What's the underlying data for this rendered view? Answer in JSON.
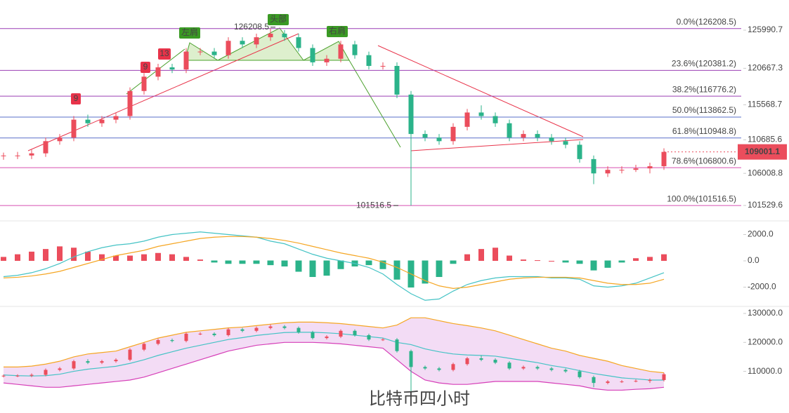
{
  "chart_data": [
    {
      "type": "candlestick",
      "ylim": [
        99866,
        130198
      ],
      "yticks": [
        125990.7,
        120667.3,
        115568.7,
        110685.6,
        106008.8,
        101529.6
      ],
      "up_color": "#eb4d5c",
      "down_color": "#2bb38a",
      "fib_levels": [
        {
          "value": 126208.5,
          "label": "0.0%(126208.5)",
          "color": "#9b3fb5"
        },
        {
          "value": 120381.2,
          "label": "23.6%(120381.2)",
          "color": "#9b3fb5"
        },
        {
          "value": 116776.2,
          "label": "38.2%(116776.2)",
          "color": "#9b3fb5"
        },
        {
          "value": 113862.5,
          "label": "50.0%(113862.5)",
          "color": "#5a6fc8"
        },
        {
          "value": 110948.8,
          "label": "61.8%(110948.8)",
          "color": "#5a6fc8"
        },
        {
          "value": 106800.6,
          "label": "78.6%(106800.6)",
          "color": "#d64fb0"
        },
        {
          "value": 101516.5,
          "label": "100.0%(101516.5)",
          "color": "#d64fb0"
        }
      ],
      "annotations": [
        "左肩",
        "头部",
        "右肩",
        "9",
        "9",
        "13"
      ],
      "ohlc": [
        [
          108400,
          108900,
          107900,
          108500
        ],
        [
          108500,
          109000,
          108000,
          108500
        ],
        [
          108500,
          109300,
          108000,
          108800
        ],
        [
          108800,
          111000,
          108300,
          110500
        ],
        [
          110500,
          111500,
          110000,
          111000
        ],
        [
          111000,
          114000,
          110500,
          113500
        ],
        [
          113500,
          114200,
          112500,
          113000
        ],
        [
          113000,
          114000,
          112500,
          113500
        ],
        [
          113500,
          114500,
          113000,
          114000
        ],
        [
          114000,
          118000,
          113500,
          117500
        ],
        [
          117500,
          120000,
          117000,
          119500
        ],
        [
          119500,
          121300,
          119000,
          120800
        ],
        [
          120800,
          121300,
          120000,
          120500
        ],
        [
          120500,
          123500,
          120000,
          123000
        ],
        [
          123000,
          123500,
          122500,
          123000
        ],
        [
          123000,
          123500,
          122000,
          122500
        ],
        [
          122500,
          125000,
          122000,
          124500
        ],
        [
          124500,
          125000,
          123500,
          124000
        ],
        [
          124000,
          125500,
          123500,
          125000
        ],
        [
          125000,
          126208.5,
          124500,
          125500
        ],
        [
          125500,
          126000,
          124500,
          125000
        ],
        [
          125000,
          125500,
          123000,
          123500
        ],
        [
          123500,
          124000,
          121000,
          121500
        ],
        [
          121500,
          122500,
          121000,
          122000
        ],
        [
          122000,
          124500,
          121500,
          124000
        ],
        [
          124000,
          124500,
          122000,
          122500
        ],
        [
          122500,
          123000,
          120500,
          121000
        ],
        [
          121000,
          121500,
          120500,
          121000
        ],
        [
          121000,
          121500,
          116500,
          117000
        ],
        [
          117000,
          117500,
          101516.5,
          111500
        ],
        [
          111500,
          112000,
          110500,
          111000
        ],
        [
          111000,
          111500,
          110000,
          110500
        ],
        [
          110500,
          113000,
          110000,
          112500
        ],
        [
          112500,
          115000,
          112000,
          114500
        ],
        [
          114500,
          115500,
          113500,
          114000
        ],
        [
          114000,
          114500,
          112500,
          113000
        ],
        [
          113000,
          113500,
          110500,
          111000
        ],
        [
          111000,
          112000,
          110500,
          111500
        ],
        [
          111500,
          112000,
          110500,
          111000
        ],
        [
          111000,
          111500,
          110000,
          110500
        ],
        [
          110500,
          111000,
          109500,
          110000
        ],
        [
          110000,
          110500,
          107500,
          108000
        ],
        [
          108000,
          108500,
          104500,
          106000
        ],
        [
          106000,
          107000,
          105500,
          106500
        ],
        [
          106500,
          107000,
          106000,
          106500
        ],
        [
          106500,
          107200,
          106200,
          106700
        ],
        [
          106700,
          107500,
          106000,
          107000
        ],
        [
          107000,
          109500,
          106500,
          109001.1
        ]
      ]
    },
    {
      "type": "macd",
      "ylim": [
        -3300,
        2800
      ],
      "yticks": [
        {
          "value": 2000,
          "label": "2000.0"
        },
        {
          "value": 0,
          "label": "0.0"
        },
        {
          "value": -2000,
          "label": "-2000.0"
        }
      ],
      "up_color": "#eb4d5c",
      "down_color": "#2bb38a",
      "histogram": [
        300,
        500,
        700,
        900,
        1100,
        1000,
        700,
        500,
        400,
        400,
        500,
        600,
        500,
        300,
        100,
        -100,
        -200,
        -200,
        -200,
        -300,
        -400,
        -800,
        -1200,
        -1100,
        -600,
        -400,
        -300,
        -600,
        -1400,
        -2000,
        -1700,
        -1200,
        -200,
        500,
        900,
        1000,
        400,
        100,
        50,
        0,
        -100,
        -200,
        -700,
        -500,
        -100,
        200,
        300,
        500
      ],
      "series": [
        {
          "color": "#44c3c5",
          "values": [
            -1200,
            -1100,
            -900,
            -600,
            -200,
            300,
            700,
            1000,
            1200,
            1300,
            1500,
            1800,
            2000,
            2100,
            2200,
            2100,
            2000,
            1900,
            1800,
            1500,
            1300,
            900,
            500,
            200,
            0,
            -200,
            -500,
            -1000,
            -1800,
            -2500,
            -3000,
            -2900,
            -2300,
            -1800,
            -1500,
            -1300,
            -1200,
            -1200,
            -1200,
            -1300,
            -1300,
            -1400,
            -1900,
            -2000,
            -1900,
            -1700,
            -1300,
            -900
          ]
        },
        {
          "color": "#f5a623",
          "values": [
            -1300,
            -1250,
            -1150,
            -1000,
            -800,
            -500,
            -200,
            100,
            400,
            600,
            800,
            1100,
            1300,
            1500,
            1700,
            1800,
            1850,
            1850,
            1800,
            1700,
            1550,
            1350,
            1100,
            850,
            600,
            400,
            200,
            -100,
            -500,
            -1000,
            -1500,
            -1900,
            -2100,
            -2000,
            -1800,
            -1600,
            -1400,
            -1300,
            -1250,
            -1250,
            -1250,
            -1300,
            -1500,
            -1700,
            -1800,
            -1800,
            -1700,
            -1400
          ]
        }
      ]
    },
    {
      "type": "bollinger",
      "title": "比特币四小时",
      "ylim": [
        99000,
        131700
      ],
      "yticks": [
        {
          "value": 130000,
          "label": "130000.0"
        },
        {
          "value": 120000,
          "label": "120000.0"
        },
        {
          "value": 110000,
          "label": "110000.0"
        }
      ],
      "fill": "#f3dcf5",
      "series": [
        {
          "color": "#f5a623",
          "values": [
            111500,
            111500,
            111800,
            112500,
            113500,
            115000,
            116000,
            116500,
            117000,
            118500,
            120000,
            121500,
            122500,
            123500,
            124000,
            124500,
            125000,
            125300,
            125800,
            126300,
            126800,
            127000,
            127000,
            126800,
            126500,
            126000,
            125500,
            125000,
            126000,
            128500,
            128500,
            127500,
            126500,
            125800,
            125000,
            124000,
            122500,
            121000,
            119500,
            118000,
            117000,
            115500,
            114500,
            113500,
            112000,
            111000,
            110000,
            109500
          ]
        },
        {
          "color": "#44c3c5",
          "values": [
            108750,
            108500,
            108400,
            108500,
            109000,
            110000,
            110750,
            111250,
            111750,
            112750,
            114000,
            115500,
            116750,
            118000,
            119000,
            120000,
            121000,
            121650,
            122400,
            122900,
            123400,
            123500,
            123500,
            123300,
            123000,
            122500,
            122000,
            121500,
            120000,
            119250,
            117750,
            116750,
            116000,
            115650,
            115500,
            115250,
            114500,
            113750,
            113000,
            112000,
            111250,
            110250,
            109250,
            108500,
            107750,
            107400,
            107000,
            107000
          ]
        },
        {
          "color": "#d63fb8",
          "values": [
            106000,
            105500,
            105000,
            104500,
            104500,
            105000,
            105500,
            106000,
            106500,
            107000,
            108000,
            109500,
            111000,
            112500,
            114000,
            115500,
            117000,
            118000,
            119000,
            119500,
            120000,
            120000,
            120000,
            119800,
            119500,
            119000,
            118500,
            118000,
            114000,
            110000,
            107000,
            106000,
            105500,
            105500,
            106000,
            106500,
            106500,
            106500,
            106500,
            106000,
            105500,
            105000,
            104000,
            103500,
            103500,
            103800,
            104000,
            104500
          ]
        }
      ]
    }
  ]
}
